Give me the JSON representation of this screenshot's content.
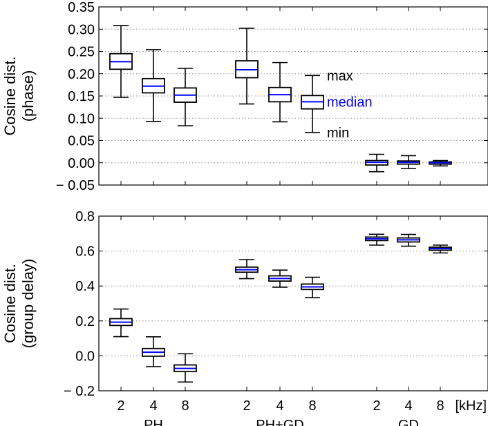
{
  "chart_data": [
    {
      "type": "box",
      "ylabel_lines": [
        "Cosine dist.",
        "(phase)"
      ],
      "ylim": [
        -0.05,
        0.35
      ],
      "yticks": [
        -0.05,
        0.0,
        0.05,
        0.1,
        0.15,
        0.2,
        0.25,
        0.3,
        0.35
      ],
      "ytick_labels": [
        "− 0.05",
        "0.00",
        "0.05",
        "0.10",
        "0.15",
        "0.20",
        "0.25",
        "0.30",
        "0.35"
      ],
      "grid": "horizontal-dotted",
      "groups": [
        {
          "name": "PH",
          "boxes": [
            {
              "x": "2",
              "min": 0.147,
              "q1": 0.21,
              "median": 0.227,
              "q3": 0.245,
              "max": 0.308
            },
            {
              "x": "4",
              "min": 0.093,
              "q1": 0.157,
              "median": 0.172,
              "q3": 0.189,
              "max": 0.254
            },
            {
              "x": "8",
              "min": 0.083,
              "q1": 0.136,
              "median": 0.152,
              "q3": 0.168,
              "max": 0.212
            }
          ]
        },
        {
          "name": "PH+GD",
          "boxes": [
            {
              "x": "2",
              "min": 0.132,
              "q1": 0.191,
              "median": 0.209,
              "q3": 0.229,
              "max": 0.302
            },
            {
              "x": "4",
              "min": 0.092,
              "q1": 0.137,
              "median": 0.153,
              "q3": 0.169,
              "max": 0.225
            },
            {
              "x": "8",
              "min": 0.068,
              "q1": 0.121,
              "median": 0.137,
              "q3": 0.151,
              "max": 0.196
            }
          ]
        },
        {
          "name": "GD",
          "boxes": [
            {
              "x": "2",
              "min": -0.02,
              "q1": -0.005,
              "median": 0.001,
              "q3": 0.005,
              "max": 0.019
            },
            {
              "x": "4",
              "min": -0.013,
              "q1": -0.003,
              "median": 0.001,
              "q3": 0.004,
              "max": 0.016
            },
            {
              "x": "8",
              "min": -0.007,
              "q1": -0.003,
              "median": 0.0,
              "q3": 0.002,
              "max": 0.005
            }
          ]
        }
      ],
      "annotations": [
        {
          "text": "max",
          "value": 0.196,
          "color": "#000000"
        },
        {
          "text": "median",
          "value": 0.137,
          "color": "#0000ff"
        },
        {
          "text": "min",
          "value": 0.068,
          "color": "#000000"
        }
      ]
    },
    {
      "type": "box",
      "ylabel_lines": [
        "Cosine dist.",
        "(group delay)"
      ],
      "ylim": [
        -0.2,
        0.8
      ],
      "yticks": [
        -0.2,
        0.0,
        0.2,
        0.4,
        0.6,
        0.8
      ],
      "ytick_labels": [
        "− 0.2",
        "0.0",
        "0.2",
        "0.4",
        "0.6",
        "0.8"
      ],
      "grid": "horizontal-dotted",
      "groups": [
        {
          "name": "PH",
          "boxes": [
            {
              "x": "2",
              "min": 0.11,
              "q1": 0.174,
              "median": 0.193,
              "q3": 0.213,
              "max": 0.268
            },
            {
              "x": "4",
              "min": -0.062,
              "q1": -0.002,
              "median": 0.021,
              "q3": 0.042,
              "max": 0.109
            },
            {
              "x": "8",
              "min": -0.15,
              "q1": -0.09,
              "median": -0.072,
              "q3": -0.052,
              "max": 0.012
            }
          ]
        },
        {
          "name": "PH+GD",
          "boxes": [
            {
              "x": "2",
              "min": 0.442,
              "q1": 0.479,
              "median": 0.493,
              "q3": 0.508,
              "max": 0.551
            },
            {
              "x": "4",
              "min": 0.393,
              "q1": 0.428,
              "median": 0.443,
              "q3": 0.458,
              "max": 0.491
            },
            {
              "x": "8",
              "min": 0.333,
              "q1": 0.38,
              "median": 0.395,
              "q3": 0.411,
              "max": 0.45
            }
          ]
        },
        {
          "name": "GD",
          "boxes": [
            {
              "x": "2",
              "min": 0.634,
              "q1": 0.66,
              "median": 0.67,
              "q3": 0.68,
              "max": 0.696
            },
            {
              "x": "4",
              "min": 0.628,
              "q1": 0.652,
              "median": 0.664,
              "q3": 0.675,
              "max": 0.695
            },
            {
              "x": "8",
              "min": 0.589,
              "q1": 0.605,
              "median": 0.614,
              "q3": 0.622,
              "max": 0.634
            }
          ]
        }
      ]
    }
  ],
  "x_tick_labels": [
    "2",
    "4",
    "8",
    "2",
    "4",
    "8",
    "2",
    "4",
    "8"
  ],
  "x_unit": "[kHz]",
  "group_labels": [
    "PH",
    "PH+GD",
    "GD"
  ],
  "colors": {
    "median": "#0000ff",
    "box_edge": "#000000",
    "grid": "#888888",
    "background": "#ffffff"
  }
}
